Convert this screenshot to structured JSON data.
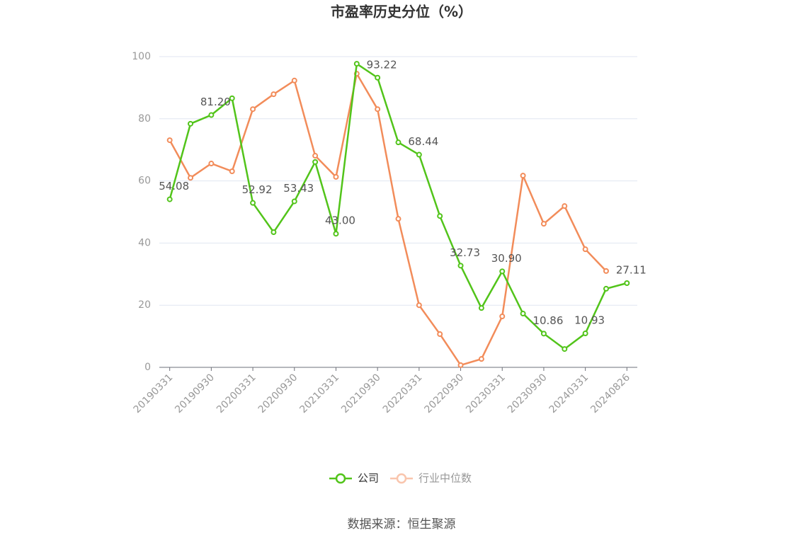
{
  "chart_data": {
    "type": "line",
    "title": "市盈率历史分位（%）",
    "categories": [
      "20190331",
      null,
      "20190930",
      null,
      "20200331",
      null,
      "20200930",
      null,
      "20210331",
      null,
      "20210930",
      null,
      "20220331",
      null,
      "20220930",
      null,
      "20230331",
      null,
      "20230930",
      null,
      "20240331",
      null,
      "20240826"
    ],
    "series": [
      {
        "name": "公司",
        "color": "#52c41a",
        "values": [
          54.08,
          78.4,
          81.2,
          86.6,
          52.92,
          43.5,
          53.43,
          66.1,
          43.0,
          97.7,
          93.22,
          72.4,
          68.44,
          48.7,
          32.73,
          19.1,
          30.9,
          17.3,
          10.86,
          5.9,
          10.93,
          25.3,
          27.11
        ],
        "value_labels": [
          "54.08",
          null,
          "81.20",
          null,
          "52.92",
          null,
          "53.43",
          null,
          "43.00",
          null,
          "93.22",
          null,
          "68.44",
          null,
          "32.73",
          null,
          "30.90",
          null,
          "10.86",
          null,
          "10.93",
          null,
          "27.11"
        ]
      },
      {
        "name": "行业中位数",
        "color": "#f28c5a",
        "values": [
          73.1,
          61.0,
          65.6,
          63.1,
          83.1,
          87.9,
          92.3,
          68.1,
          61.3,
          94.5,
          83.1,
          47.8,
          20.0,
          10.7,
          0.7,
          2.7,
          16.4,
          61.7,
          46.2,
          51.9,
          38.0,
          31.0,
          null
        ]
      }
    ],
    "ylim": [
      0,
      100
    ],
    "yticks": [
      0,
      20,
      40,
      60,
      80,
      100
    ],
    "grid": true,
    "source": "数据来源：恒生聚源"
  }
}
